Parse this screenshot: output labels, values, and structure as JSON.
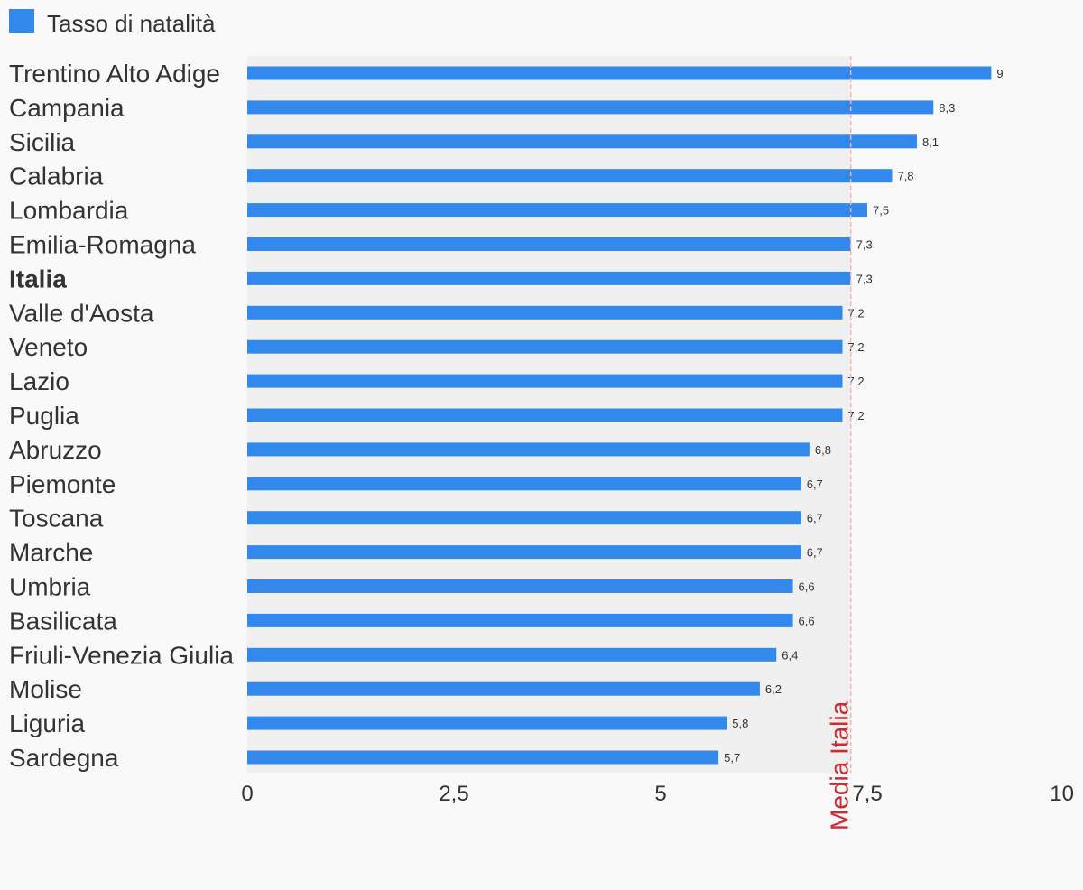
{
  "colors": {
    "bar": "#3389eb",
    "plot_bg": "#f0f0f0",
    "page_bg": "#f9f9f9",
    "label": "#333333",
    "reference": "#cc2b33",
    "reference_line": "#f3b3b6"
  },
  "chart_data": {
    "type": "bar",
    "orientation": "horizontal",
    "legend": {
      "position": "top-left",
      "entries": [
        "Tasso di natalità"
      ]
    },
    "categories": [
      "Trentino Alto Adige",
      "Campania",
      "Sicilia",
      "Calabria",
      "Lombardia",
      "Emilia-Romagna",
      "Italia",
      "Valle d'Aosta",
      "Veneto",
      "Lazio",
      "Puglia",
      "Abruzzo",
      "Piemonte",
      "Toscana",
      "Marche",
      "Umbria",
      "Basilicata",
      "Friuli-Venezia Giulia",
      "Molise",
      "Liguria",
      "Sardegna"
    ],
    "highlighted_category": "Italia",
    "series": [
      {
        "name": "Tasso di natalità",
        "values": [
          9,
          8.3,
          8.1,
          7.8,
          7.5,
          7.3,
          7.3,
          7.2,
          7.2,
          7.2,
          7.2,
          6.8,
          6.7,
          6.7,
          6.7,
          6.6,
          6.6,
          6.4,
          6.2,
          5.8,
          5.7
        ],
        "data_labels": [
          "9",
          "8,3",
          "8,1",
          "7,8",
          "7,5",
          "7,3",
          "7,3",
          "7,2",
          "7,2",
          "7,2",
          "7,2",
          "6,8",
          "6,7",
          "6,7",
          "6,7",
          "6,6",
          "6,6",
          "6,4",
          "6,2",
          "5,8",
          "5,7"
        ]
      }
    ],
    "xlim": [
      0,
      10
    ],
    "x_ticks": [
      0,
      2.5,
      5,
      7.5,
      10
    ],
    "x_tick_labels": [
      "0",
      "2,5",
      "5",
      "7,5",
      "10"
    ],
    "reference_line": {
      "label": "Media Italia",
      "value": 7.3
    },
    "grid": false
  }
}
